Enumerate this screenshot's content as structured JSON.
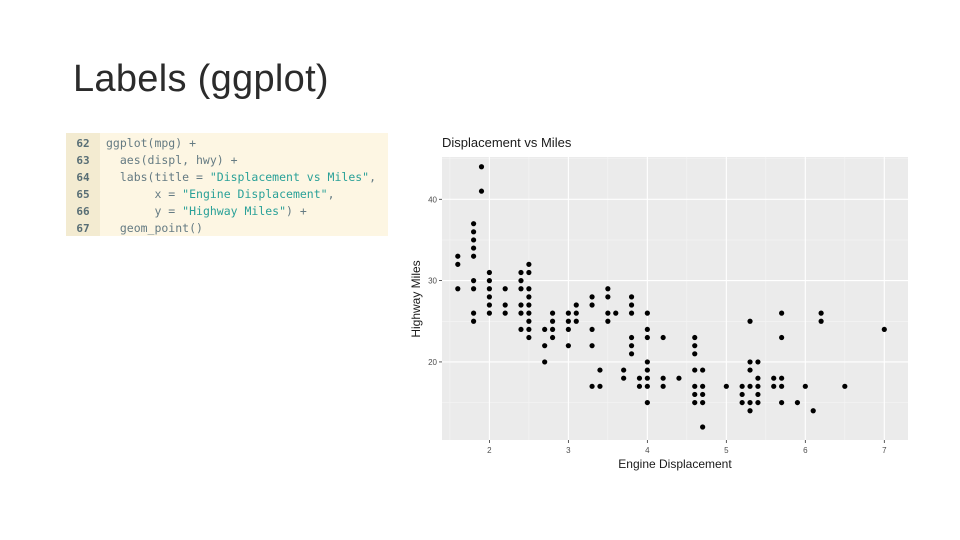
{
  "slide": {
    "title": "Labels (ggplot)"
  },
  "code": {
    "lines": [
      {
        "num": "62",
        "parts": [
          {
            "t": "ggplot(mpg) +",
            "s": false
          }
        ]
      },
      {
        "num": "63",
        "parts": [
          {
            "t": "  aes(displ, hwy) +",
            "s": false
          }
        ]
      },
      {
        "num": "64",
        "parts": [
          {
            "t": "  labs(title = ",
            "s": false
          },
          {
            "t": "\"Displacement vs Miles\"",
            "s": true
          },
          {
            "t": ",",
            "s": false
          }
        ]
      },
      {
        "num": "65",
        "parts": [
          {
            "t": "       x = ",
            "s": false
          },
          {
            "t": "\"Engine Displacement\"",
            "s": true
          },
          {
            "t": ",",
            "s": false
          }
        ]
      },
      {
        "num": "66",
        "parts": [
          {
            "t": "       y = ",
            "s": false
          },
          {
            "t": "\"Highway Miles\"",
            "s": true
          },
          {
            "t": ") +",
            "s": false
          }
        ]
      },
      {
        "num": "67",
        "parts": [
          {
            "t": "  geom_point()",
            "s": false
          }
        ]
      }
    ]
  },
  "chart_data": {
    "type": "scatter",
    "title": "Displacement vs Miles",
    "xlabel": "Engine Displacement",
    "ylabel": "Highway Miles",
    "xlim": [
      1.4,
      7.3
    ],
    "ylim": [
      10.4,
      45.2
    ],
    "xticks": [
      2,
      3,
      4,
      5,
      6,
      7
    ],
    "yticks": [
      20,
      30,
      40
    ],
    "grid": true,
    "panel_color": "#ebebeb",
    "point_color": "#000000",
    "points": [
      [
        1.6,
        33
      ],
      [
        1.6,
        32
      ],
      [
        1.6,
        29
      ],
      [
        1.8,
        37
      ],
      [
        1.8,
        36
      ],
      [
        1.8,
        35
      ],
      [
        1.8,
        34
      ],
      [
        1.8,
        33
      ],
      [
        1.8,
        30
      ],
      [
        1.8,
        29
      ],
      [
        1.8,
        26
      ],
      [
        1.8,
        25
      ],
      [
        1.9,
        44
      ],
      [
        1.9,
        41
      ],
      [
        2.0,
        31
      ],
      [
        2.0,
        30
      ],
      [
        2.0,
        29
      ],
      [
        2.0,
        28
      ],
      [
        2.0,
        27
      ],
      [
        2.0,
        26
      ],
      [
        2.2,
        29
      ],
      [
        2.2,
        27
      ],
      [
        2.2,
        26
      ],
      [
        2.4,
        31
      ],
      [
        2.4,
        30
      ],
      [
        2.4,
        29
      ],
      [
        2.4,
        27
      ],
      [
        2.4,
        26
      ],
      [
        2.4,
        24
      ],
      [
        2.5,
        32
      ],
      [
        2.5,
        31
      ],
      [
        2.5,
        29
      ],
      [
        2.5,
        28
      ],
      [
        2.5,
        27
      ],
      [
        2.5,
        26
      ],
      [
        2.5,
        25
      ],
      [
        2.5,
        24
      ],
      [
        2.5,
        23
      ],
      [
        2.7,
        24
      ],
      [
        2.7,
        22
      ],
      [
        2.7,
        20
      ],
      [
        2.8,
        26
      ],
      [
        2.8,
        25
      ],
      [
        2.8,
        24
      ],
      [
        2.8,
        23
      ],
      [
        3.0,
        26
      ],
      [
        3.0,
        25
      ],
      [
        3.0,
        24
      ],
      [
        3.0,
        22
      ],
      [
        3.1,
        27
      ],
      [
        3.1,
        26
      ],
      [
        3.1,
        25
      ],
      [
        3.3,
        28
      ],
      [
        3.3,
        27
      ],
      [
        3.3,
        24
      ],
      [
        3.3,
        22
      ],
      [
        3.3,
        17
      ],
      [
        3.4,
        19
      ],
      [
        3.4,
        17
      ],
      [
        3.5,
        29
      ],
      [
        3.5,
        28
      ],
      [
        3.5,
        26
      ],
      [
        3.5,
        25
      ],
      [
        3.6,
        26
      ],
      [
        3.7,
        19
      ],
      [
        3.7,
        18
      ],
      [
        3.8,
        28
      ],
      [
        3.8,
        27
      ],
      [
        3.8,
        26
      ],
      [
        3.8,
        23
      ],
      [
        3.8,
        22
      ],
      [
        3.8,
        21
      ],
      [
        3.9,
        17
      ],
      [
        3.9,
        18
      ],
      [
        4.0,
        26
      ],
      [
        4.0,
        24
      ],
      [
        4.0,
        23
      ],
      [
        4.0,
        20
      ],
      [
        4.0,
        19
      ],
      [
        4.0,
        18
      ],
      [
        4.0,
        17
      ],
      [
        4.0,
        15
      ],
      [
        4.2,
        23
      ],
      [
        4.2,
        18
      ],
      [
        4.2,
        17
      ],
      [
        4.4,
        18
      ],
      [
        4.6,
        23
      ],
      [
        4.6,
        22
      ],
      [
        4.6,
        21
      ],
      [
        4.6,
        19
      ],
      [
        4.6,
        17
      ],
      [
        4.6,
        16
      ],
      [
        4.6,
        15
      ],
      [
        4.7,
        19
      ],
      [
        4.7,
        17
      ],
      [
        4.7,
        16
      ],
      [
        4.7,
        15
      ],
      [
        4.7,
        12
      ],
      [
        5.0,
        17
      ],
      [
        5.2,
        17
      ],
      [
        5.2,
        16
      ],
      [
        5.2,
        15
      ],
      [
        5.3,
        25
      ],
      [
        5.3,
        20
      ],
      [
        5.3,
        19
      ],
      [
        5.3,
        17
      ],
      [
        5.3,
        15
      ],
      [
        5.3,
        14
      ],
      [
        5.4,
        20
      ],
      [
        5.4,
        18
      ],
      [
        5.4,
        17
      ],
      [
        5.4,
        16
      ],
      [
        5.4,
        15
      ],
      [
        5.6,
        18
      ],
      [
        5.6,
        17
      ],
      [
        5.7,
        26
      ],
      [
        5.7,
        23
      ],
      [
        5.7,
        18
      ],
      [
        5.7,
        17
      ],
      [
        5.7,
        15
      ],
      [
        5.9,
        15
      ],
      [
        6.0,
        17
      ],
      [
        6.1,
        14
      ],
      [
        6.2,
        26
      ],
      [
        6.2,
        25
      ],
      [
        6.5,
        17
      ],
      [
        7.0,
        24
      ]
    ]
  }
}
